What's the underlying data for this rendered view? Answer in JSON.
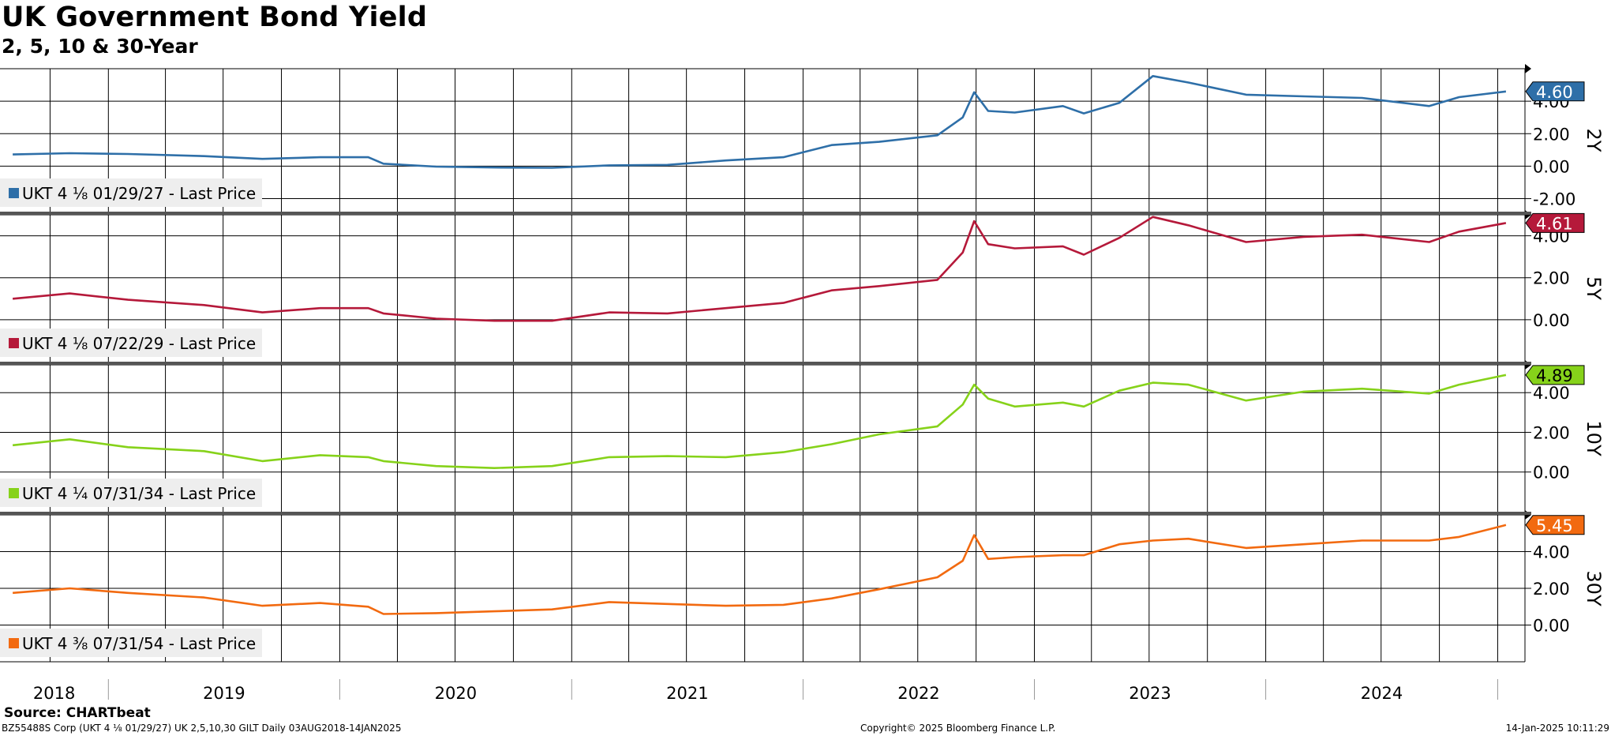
{
  "title": "UK Government Bond Yield",
  "subtitle": "2, 5, 10 & 30-Year",
  "source": "Source: CHARTbeat",
  "footer": {
    "left": "BZ55488S Corp (UKT 4 ⅛ 01/29/27) UK 2,5,10,30 GILT  Daily 03AUG2018-14JAN2025",
    "center": "Copyright© 2025 Bloomberg Finance L.P.",
    "right": "14-Jan-2025 10:11:29"
  },
  "chart_data": {
    "type": "line",
    "x_range": [
      "2018-08-03",
      "2025-01-14"
    ],
    "year_labels": [
      "2018",
      "2019",
      "2020",
      "2021",
      "2022",
      "2023",
      "2024"
    ],
    "grid": true,
    "panels": [
      {
        "axis_label": "2Y",
        "legend": "UKT 4 ⅛ 01/29/27 - Last Price",
        "color": "#2e6fa8",
        "last_value": "4.60",
        "ylim": [
          -2.8,
          6.0
        ],
        "yticks": [
          -2,
          0,
          2,
          4
        ],
        "ytick_labels": [
          "-2.00",
          "0.00",
          "2.00",
          "4.00"
        ],
        "points": [
          [
            "2018-08-03",
            0.72
          ],
          [
            "2018-11-01",
            0.8
          ],
          [
            "2019-02-01",
            0.75
          ],
          [
            "2019-06-01",
            0.62
          ],
          [
            "2019-09-01",
            0.45
          ],
          [
            "2019-12-01",
            0.55
          ],
          [
            "2020-02-15",
            0.55
          ],
          [
            "2020-03-10",
            0.15
          ],
          [
            "2020-06-01",
            -0.03
          ],
          [
            "2020-09-01",
            -0.08
          ],
          [
            "2020-12-01",
            -0.1
          ],
          [
            "2021-03-01",
            0.05
          ],
          [
            "2021-06-01",
            0.08
          ],
          [
            "2021-09-01",
            0.35
          ],
          [
            "2021-12-01",
            0.55
          ],
          [
            "2022-02-15",
            1.3
          ],
          [
            "2022-05-01",
            1.5
          ],
          [
            "2022-08-01",
            1.9
          ],
          [
            "2022-09-10",
            3.0
          ],
          [
            "2022-09-28",
            4.55
          ],
          [
            "2022-10-20",
            3.4
          ],
          [
            "2022-12-01",
            3.3
          ],
          [
            "2023-02-15",
            3.7
          ],
          [
            "2023-03-20",
            3.25
          ],
          [
            "2023-05-15",
            3.9
          ],
          [
            "2023-07-07",
            5.55
          ],
          [
            "2023-09-01",
            5.15
          ],
          [
            "2023-12-01",
            4.4
          ],
          [
            "2024-03-01",
            4.3
          ],
          [
            "2024-06-01",
            4.2
          ],
          [
            "2024-09-15",
            3.7
          ],
          [
            "2024-11-01",
            4.25
          ],
          [
            "2025-01-14",
            4.6
          ]
        ]
      },
      {
        "axis_label": "5Y",
        "legend": "UKT 4 ⅛ 07/22/29 - Last Price",
        "color": "#b5193a",
        "last_value": "4.61",
        "ylim": [
          -2.0,
          5.0
        ],
        "yticks": [
          0,
          2,
          4
        ],
        "ytick_labels": [
          "0.00",
          "2.00",
          "4.00"
        ],
        "points": [
          [
            "2018-08-03",
            1.0
          ],
          [
            "2018-11-01",
            1.25
          ],
          [
            "2019-02-01",
            0.95
          ],
          [
            "2019-06-01",
            0.7
          ],
          [
            "2019-09-01",
            0.35
          ],
          [
            "2019-12-01",
            0.55
          ],
          [
            "2020-02-15",
            0.55
          ],
          [
            "2020-03-10",
            0.3
          ],
          [
            "2020-06-01",
            0.05
          ],
          [
            "2020-09-01",
            -0.05
          ],
          [
            "2020-12-01",
            -0.05
          ],
          [
            "2021-03-01",
            0.35
          ],
          [
            "2021-06-01",
            0.3
          ],
          [
            "2021-09-01",
            0.55
          ],
          [
            "2021-12-01",
            0.8
          ],
          [
            "2022-02-15",
            1.4
          ],
          [
            "2022-05-01",
            1.6
          ],
          [
            "2022-08-01",
            1.9
          ],
          [
            "2022-09-10",
            3.2
          ],
          [
            "2022-09-28",
            4.7
          ],
          [
            "2022-10-20",
            3.6
          ],
          [
            "2022-12-01",
            3.4
          ],
          [
            "2023-02-15",
            3.5
          ],
          [
            "2023-03-20",
            3.1
          ],
          [
            "2023-05-15",
            3.9
          ],
          [
            "2023-07-07",
            4.9
          ],
          [
            "2023-09-01",
            4.5
          ],
          [
            "2023-12-01",
            3.7
          ],
          [
            "2024-03-01",
            3.95
          ],
          [
            "2024-06-01",
            4.05
          ],
          [
            "2024-09-15",
            3.7
          ],
          [
            "2024-11-01",
            4.2
          ],
          [
            "2025-01-14",
            4.61
          ]
        ]
      },
      {
        "axis_label": "10Y",
        "legend": "UKT 4 ¼ 07/31/34 - Last Price",
        "color": "#86d21a",
        "last_value": "4.89",
        "ylim": [
          -2.0,
          5.4
        ],
        "yticks": [
          0,
          2,
          4
        ],
        "ytick_labels": [
          "0.00",
          "2.00",
          "4.00"
        ],
        "points": [
          [
            "2018-08-03",
            1.35
          ],
          [
            "2018-11-01",
            1.65
          ],
          [
            "2019-02-01",
            1.25
          ],
          [
            "2019-06-01",
            1.05
          ],
          [
            "2019-09-01",
            0.55
          ],
          [
            "2019-12-01",
            0.85
          ],
          [
            "2020-02-15",
            0.75
          ],
          [
            "2020-03-10",
            0.55
          ],
          [
            "2020-06-01",
            0.3
          ],
          [
            "2020-09-01",
            0.2
          ],
          [
            "2020-12-01",
            0.3
          ],
          [
            "2021-03-01",
            0.75
          ],
          [
            "2021-06-01",
            0.8
          ],
          [
            "2021-09-01",
            0.75
          ],
          [
            "2021-12-01",
            1.0
          ],
          [
            "2022-02-15",
            1.4
          ],
          [
            "2022-05-01",
            1.9
          ],
          [
            "2022-08-01",
            2.3
          ],
          [
            "2022-09-10",
            3.4
          ],
          [
            "2022-09-28",
            4.4
          ],
          [
            "2022-10-20",
            3.7
          ],
          [
            "2022-12-01",
            3.3
          ],
          [
            "2023-02-15",
            3.5
          ],
          [
            "2023-03-20",
            3.3
          ],
          [
            "2023-05-15",
            4.1
          ],
          [
            "2023-07-07",
            4.5
          ],
          [
            "2023-09-01",
            4.4
          ],
          [
            "2023-12-01",
            3.6
          ],
          [
            "2024-03-01",
            4.05
          ],
          [
            "2024-06-01",
            4.2
          ],
          [
            "2024-09-15",
            3.95
          ],
          [
            "2024-11-01",
            4.4
          ],
          [
            "2025-01-14",
            4.89
          ]
        ]
      },
      {
        "axis_label": "30Y",
        "legend": "UKT 4 ⅜ 07/31/54 - Last Price",
        "color": "#f26a10",
        "last_value": "5.45",
        "ylim": [
          -2.0,
          6.0
        ],
        "yticks": [
          0,
          2,
          4
        ],
        "ytick_labels": [
          "0.00",
          "2.00",
          "4.00"
        ],
        "points": [
          [
            "2018-08-03",
            1.75
          ],
          [
            "2018-11-01",
            2.0
          ],
          [
            "2019-02-01",
            1.75
          ],
          [
            "2019-06-01",
            1.5
          ],
          [
            "2019-09-01",
            1.05
          ],
          [
            "2019-12-01",
            1.2
          ],
          [
            "2020-02-15",
            1.0
          ],
          [
            "2020-03-10",
            0.6
          ],
          [
            "2020-06-01",
            0.65
          ],
          [
            "2020-09-01",
            0.75
          ],
          [
            "2020-12-01",
            0.85
          ],
          [
            "2021-03-01",
            1.25
          ],
          [
            "2021-06-01",
            1.15
          ],
          [
            "2021-09-01",
            1.05
          ],
          [
            "2021-12-01",
            1.1
          ],
          [
            "2022-02-15",
            1.45
          ],
          [
            "2022-05-01",
            1.95
          ],
          [
            "2022-08-01",
            2.6
          ],
          [
            "2022-09-10",
            3.5
          ],
          [
            "2022-09-28",
            4.9
          ],
          [
            "2022-10-20",
            3.6
          ],
          [
            "2022-12-01",
            3.7
          ],
          [
            "2023-02-15",
            3.8
          ],
          [
            "2023-03-20",
            3.8
          ],
          [
            "2023-05-15",
            4.4
          ],
          [
            "2023-07-07",
            4.6
          ],
          [
            "2023-09-01",
            4.7
          ],
          [
            "2023-12-01",
            4.2
          ],
          [
            "2024-03-01",
            4.4
          ],
          [
            "2024-06-01",
            4.6
          ],
          [
            "2024-09-15",
            4.6
          ],
          [
            "2024-11-01",
            4.8
          ],
          [
            "2025-01-14",
            5.45
          ]
        ]
      }
    ]
  }
}
